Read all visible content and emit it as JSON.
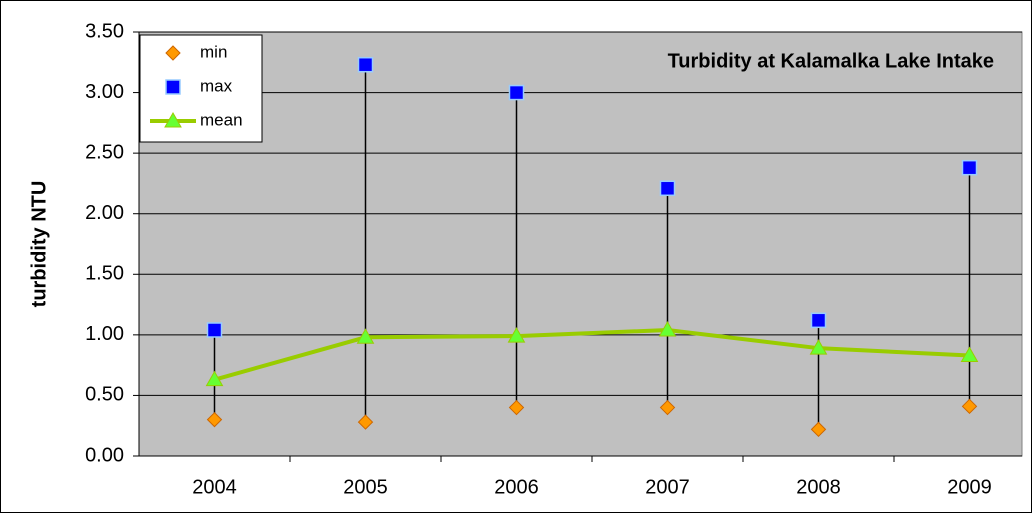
{
  "chart_data": {
    "type": "line",
    "title": "Turbidity at Kalamalka Lake Intake",
    "y_label": "turbidity NTU",
    "categories": [
      "2004",
      "2005",
      "2006",
      "2007",
      "2008",
      "2009"
    ],
    "series": [
      {
        "name": "min",
        "color": "#ff9900",
        "marker": "diamond",
        "values": [
          0.3,
          0.28,
          0.4,
          0.4,
          0.22,
          0.41
        ]
      },
      {
        "name": "max",
        "color": "#0000ff",
        "marker": "square",
        "values": [
          1.04,
          3.23,
          3.0,
          2.21,
          1.12,
          2.38
        ]
      },
      {
        "name": "mean",
        "color": "#99cc00",
        "marker": "triangle",
        "line": true,
        "values": [
          0.63,
          0.98,
          0.99,
          1.04,
          0.89,
          0.83
        ]
      }
    ],
    "high_low_lines": true,
    "ylim": [
      0,
      3.5
    ],
    "yticks": [
      {
        "value": 0,
        "label": "0.00"
      },
      {
        "value": 0.5,
        "label": "0.50"
      },
      {
        "value": 1,
        "label": "1.00"
      },
      {
        "value": 1.5,
        "label": "1.50"
      },
      {
        "value": 2,
        "label": "2.00"
      },
      {
        "value": 2.5,
        "label": "2.50"
      },
      {
        "value": 3,
        "label": "3.00"
      },
      {
        "value": 3.5,
        "label": "3.50"
      }
    ],
    "grid": true,
    "legend": "top-left"
  }
}
